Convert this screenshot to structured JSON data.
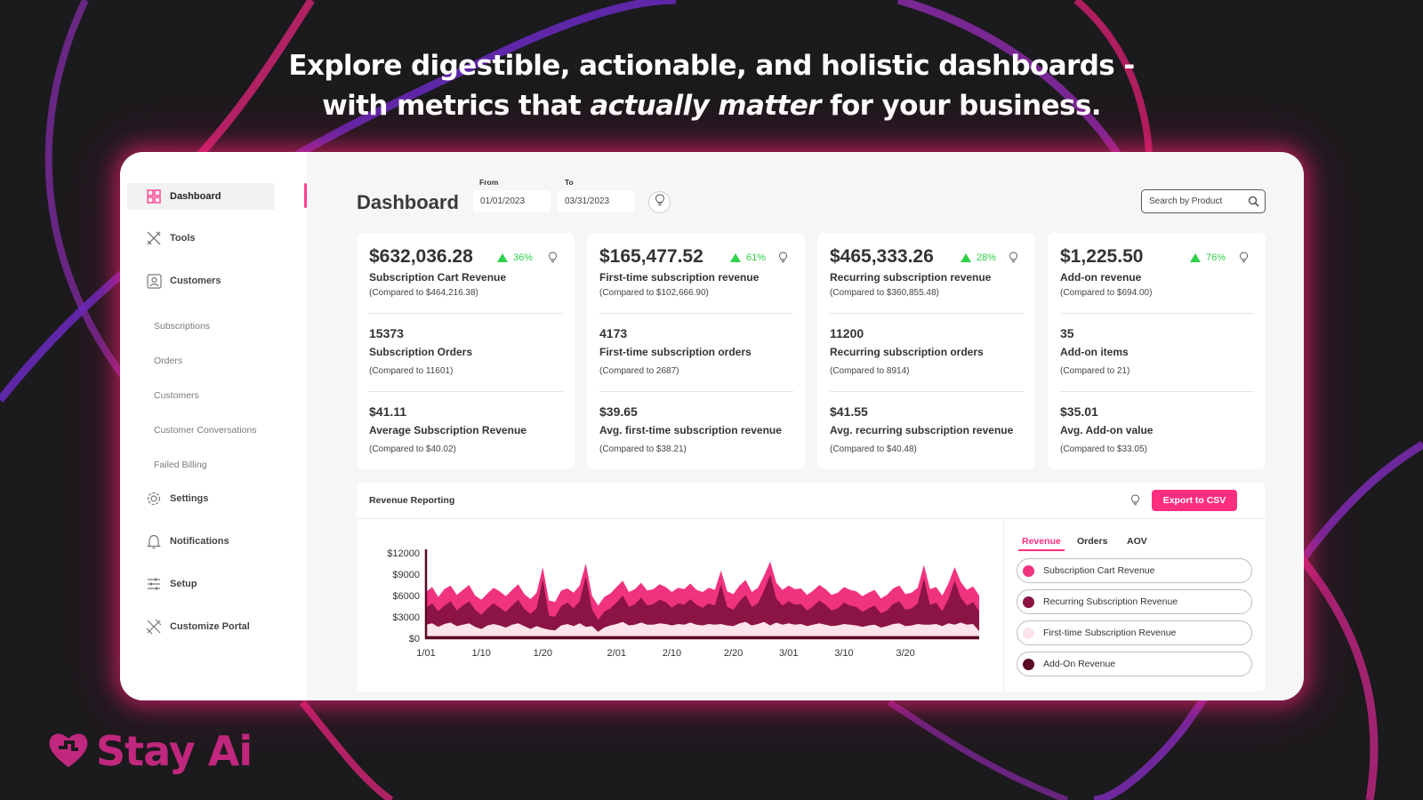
{
  "headline": {
    "line1": "Explore digestible, actionable, and holistic dashboards -",
    "line2_pre": "with metrics that ",
    "line2_em": "actually matter",
    "line2_post": " for your business."
  },
  "logo": {
    "text": "Stay Ai",
    "icon": "heart-logo-icon",
    "color": "#c0287e"
  },
  "sidebar": {
    "items": [
      {
        "label": "Dashboard",
        "icon": "dashboard-grid-icon",
        "active": true
      },
      {
        "label": "Tools",
        "icon": "tools-icon"
      },
      {
        "label": "Customers",
        "icon": "customer-card-icon"
      },
      {
        "label": "Settings",
        "icon": "gear-icon"
      },
      {
        "label": "Notifications",
        "icon": "bell-icon"
      },
      {
        "label": "Setup",
        "icon": "sliders-icon"
      },
      {
        "label": "Customize Portal",
        "icon": "customize-tools-icon"
      }
    ],
    "sub_items": [
      "Subscriptions",
      "Orders",
      "Customers",
      "Customer Conversations",
      "Failed Billing"
    ]
  },
  "header": {
    "title": "Dashboard",
    "from_label": "From",
    "from_value": "01/01/2023",
    "to_label": "To",
    "to_value": "03/31/2023",
    "search_placeholder": "Search by Product"
  },
  "cards": [
    {
      "amount": "$632,036.28",
      "change": "36%",
      "label": "Subscription Cart Revenue",
      "compare": "(Compared to $464,216.38)",
      "count": "15373",
      "count_label": "Subscription Orders",
      "count_compare": "(Compared to 11601)",
      "avg": "$41.11",
      "avg_label": "Average Subscription Revenue",
      "avg_compare": "(Compared to $40.02)"
    },
    {
      "amount": "$165,477.52",
      "change": "61%",
      "label": "First-time subscription revenue",
      "compare": "(Compared to $102,666.90)",
      "count": "4173",
      "count_label": "First-time subscription orders",
      "count_compare": "(Compared to 2687)",
      "avg": "$39.65",
      "avg_label": "Avg. first-time subscription revenue",
      "avg_compare": "(Compared to $38.21)"
    },
    {
      "amount": "$465,333.26",
      "change": "28%",
      "label": "Recurring subscription revenue",
      "compare": "(Compared to $360,855.48)",
      "count": "11200",
      "count_label": "Recurring subscription orders",
      "count_compare": "(Compared to 8914)",
      "avg": "$41.55",
      "avg_label": "Avg. recurring subscription revenue",
      "avg_compare": "(Compared to $40.48)"
    },
    {
      "amount": "$1,225.50",
      "change": "76%",
      "label": "Add-on revenue",
      "compare": "(Compared to $694.00)",
      "count": "35",
      "count_label": "Add-on items",
      "count_compare": "(Compared to 21)",
      "avg": "$35.01",
      "avg_label": "Avg. Add-on value",
      "avg_compare": "(Compared to $33.05)"
    }
  ],
  "revenue": {
    "title": "Revenue Reporting",
    "export_label": "Export to CSV",
    "tabs": [
      "Revenue",
      "Orders",
      "AOV"
    ],
    "active_tab": "Revenue",
    "legend": [
      {
        "label": "Subscription Cart Revenue",
        "color": "#f0337f"
      },
      {
        "label": "Recurring Subscription Revenue",
        "color": "#8b1444"
      },
      {
        "label": "First-time Subscription Revenue",
        "color": "#fde3ea"
      },
      {
        "label": "Add-On Revenue",
        "color": "#5a0826"
      }
    ]
  },
  "colors": {
    "accent": "#ff2f80",
    "positive": "#2fd14a",
    "background": "#1b1a1d"
  },
  "chart_data": {
    "type": "area",
    "yticks": [
      "$12000",
      "$9000",
      "$6000",
      "$3000",
      "$0"
    ],
    "ylim": [
      0,
      12000
    ],
    "xticks": [
      "1/01",
      "1/10",
      "1/20",
      "2/01",
      "2/10",
      "2/20",
      "3/01",
      "3/10",
      "3/20"
    ],
    "xtick_days": [
      0,
      9,
      19,
      31,
      40,
      50,
      59,
      68,
      78
    ],
    "x_days": 90,
    "series": [
      {
        "name": "Subscription Cart Revenue",
        "values": [
          6500,
          7200,
          5800,
          6900,
          7400,
          6100,
          6800,
          7500,
          6000,
          5400,
          6300,
          7100,
          6600,
          5900,
          6800,
          7600,
          6200,
          5500,
          6400,
          10000,
          5300,
          5100,
          6700,
          7000,
          6400,
          7400,
          10500,
          6000,
          4600,
          5800,
          6300,
          7200,
          8100,
          6500,
          6900,
          7800,
          6700,
          6900,
          7600,
          7200,
          6500,
          7100,
          6900,
          7700,
          6800,
          6500,
          7100,
          6800,
          9500,
          6600,
          6200,
          7400,
          8200,
          6500,
          7100,
          8800,
          10800,
          7800,
          6800,
          7400,
          6900,
          7000,
          6100,
          6700,
          7500,
          6900,
          6100,
          6400,
          7200,
          6800,
          6600,
          5900,
          6400,
          6800,
          5600,
          6100,
          7000,
          7400,
          6200,
          6400,
          7100,
          10300,
          6900,
          7200,
          6000,
          7700,
          10000,
          7900,
          6800,
          7300,
          6000
        ]
      },
      {
        "name": "Recurring Subscription Revenue",
        "values": [
          4300,
          4900,
          3800,
          4600,
          5200,
          3900,
          4600,
          5200,
          4000,
          3300,
          4200,
          4900,
          4300,
          3700,
          4600,
          5400,
          4100,
          3400,
          4200,
          8300,
          3200,
          3000,
          4500,
          5000,
          4200,
          5200,
          8700,
          4100,
          2600,
          3700,
          4200,
          5000,
          6000,
          4400,
          4800,
          5700,
          4600,
          4800,
          5400,
          5100,
          4300,
          4900,
          4700,
          5500,
          4700,
          4300,
          4900,
          4600,
          7600,
          4400,
          4000,
          5200,
          6100,
          4400,
          4900,
          6700,
          8900,
          5600,
          4600,
          5200,
          4700,
          4800,
          3900,
          4500,
          5300,
          4700,
          3900,
          4200,
          5000,
          4600,
          4400,
          3700,
          4200,
          4600,
          3500,
          3900,
          4800,
          5200,
          4000,
          4200,
          4900,
          8400,
          4700,
          5000,
          3800,
          5500,
          8100,
          5700,
          4600,
          5100,
          3800
        ]
      },
      {
        "name": "First-time Subscription Revenue",
        "values": [
          1900,
          2100,
          1600,
          2000,
          2200,
          1700,
          1900,
          2100,
          1600,
          1300,
          1800,
          2000,
          1800,
          1500,
          1900,
          2100,
          1700,
          1300,
          1700,
          1400,
          1200,
          1100,
          1800,
          2000,
          1700,
          2100,
          1600,
          1700,
          900,
          1500,
          1800,
          2000,
          2300,
          1800,
          1900,
          2200,
          1900,
          1900,
          2100,
          2000,
          1800,
          2000,
          1900,
          2200,
          1900,
          1800,
          2000,
          1900,
          2000,
          1800,
          1700,
          2100,
          2300,
          1800,
          2000,
          2300,
          1800,
          2200,
          1900,
          2100,
          1900,
          2000,
          1700,
          1900,
          2100,
          1900,
          1700,
          1800,
          2000,
          1900,
          1800,
          1600,
          1800,
          1900,
          1500,
          1700,
          2000,
          2100,
          1700,
          1800,
          2000,
          1900,
          1900,
          2000,
          1700,
          2100,
          1900,
          2200,
          1900,
          2000,
          1000
        ]
      },
      {
        "name": "Add-On Revenue",
        "values": [
          300,
          300,
          300,
          300,
          300,
          300,
          300,
          300,
          300,
          300,
          300,
          300,
          300,
          300,
          300,
          300,
          300,
          300,
          300,
          300,
          300,
          300,
          300,
          300,
          300,
          300,
          300,
          300,
          300,
          300,
          300,
          300,
          300,
          300,
          300,
          300,
          300,
          300,
          300,
          300,
          300,
          300,
          300,
          300,
          300,
          300,
          300,
          300,
          300,
          300,
          300,
          300,
          300,
          300,
          300,
          300,
          300,
          300,
          300,
          300,
          300,
          300,
          300,
          300,
          300,
          300,
          300,
          300,
          300,
          300,
          300,
          300,
          300,
          300,
          300,
          300,
          300,
          300,
          300,
          300,
          300,
          300,
          300,
          300,
          300,
          300,
          300,
          300,
          300,
          300,
          300
        ]
      }
    ]
  }
}
